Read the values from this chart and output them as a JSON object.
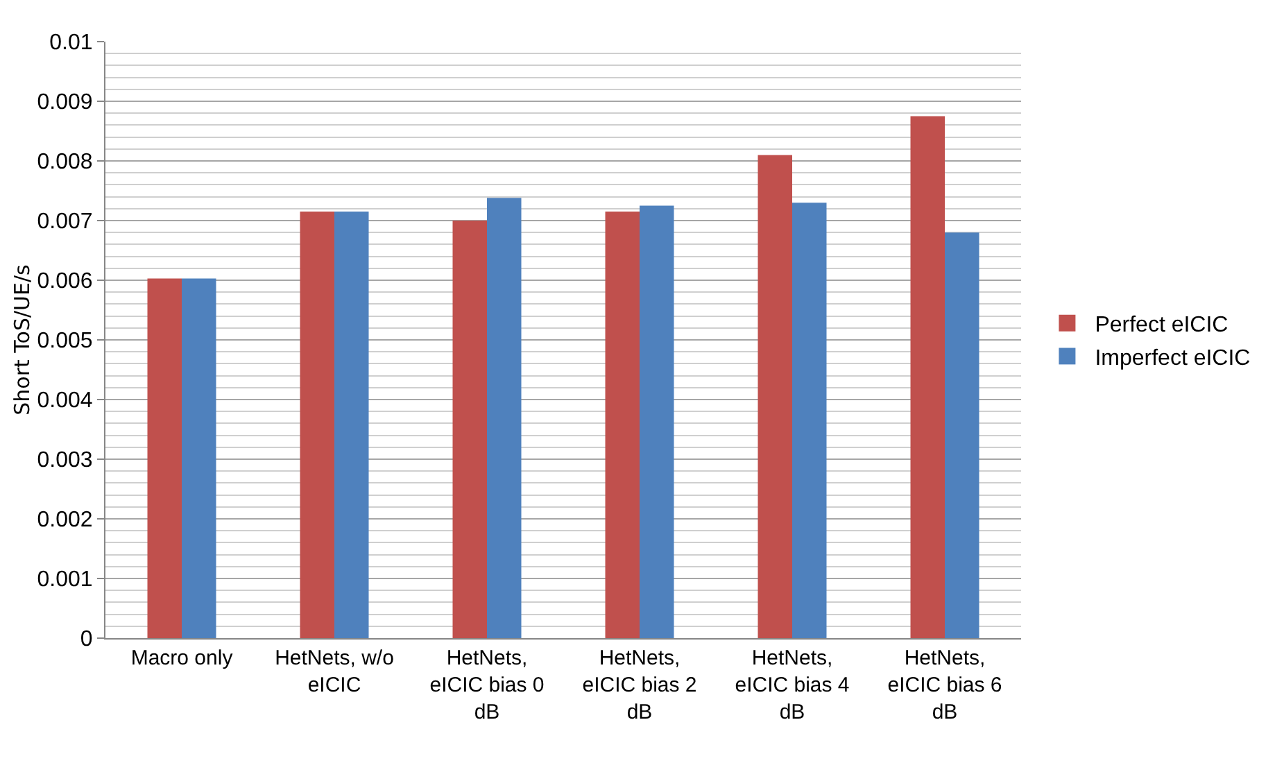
{
  "chart_data": {
    "type": "bar",
    "ylabel": "Short ToS/UE/s",
    "categories": [
      "Macro only",
      "HetNets, w/o eICIC",
      "HetNets, eICIC bias 0 dB",
      "HetNets, eICIC bias 2 dB",
      "HetNets, eICIC bias 4 dB",
      "HetNets, eICIC bias 6 dB"
    ],
    "series": [
      {
        "name": "Perfect eICIC",
        "color": "#c0504d",
        "values": [
          0.00603,
          0.00715,
          0.007,
          0.00715,
          0.0081,
          0.00875
        ]
      },
      {
        "name": "Imperfect eICIC",
        "color": "#4f81bd",
        "values": [
          0.00603,
          0.00715,
          0.00738,
          0.00725,
          0.0073,
          0.0068
        ]
      }
    ],
    "ylim": [
      0,
      0.01
    ],
    "yticks": [
      0,
      0.001,
      0.002,
      0.003,
      0.004,
      0.005,
      0.006,
      0.007,
      0.008,
      0.009,
      0.01
    ],
    "grid": "y",
    "legend": "right"
  }
}
